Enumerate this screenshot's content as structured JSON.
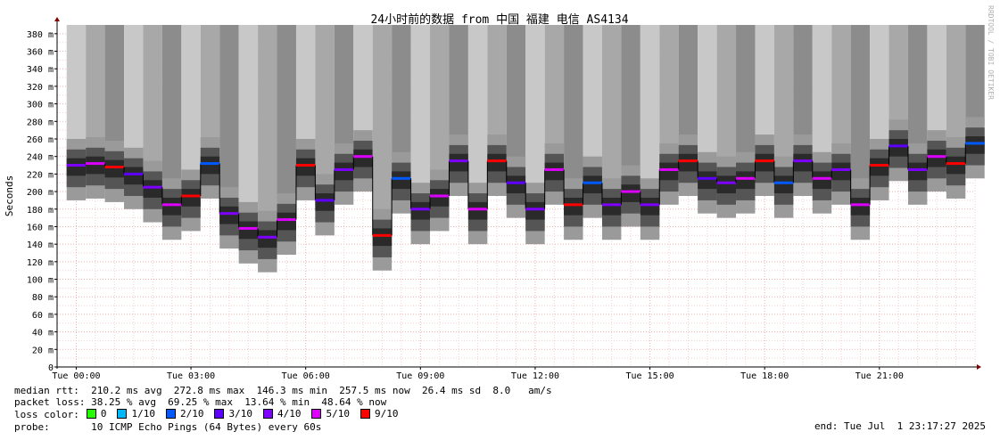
{
  "chart_data": {
    "type": "area",
    "title": "24小时前的数据 from 中国 福建 电信 AS4134",
    "ylabel": "Seconds",
    "watermark": "RRDTOOL / TOBI OETIKER",
    "ylim": [
      0,
      390
    ],
    "y_ticks": [
      {
        "v": 0,
        "label": "0"
      },
      {
        "v": 20,
        "label": "20 m"
      },
      {
        "v": 40,
        "label": "40 m"
      },
      {
        "v": 60,
        "label": "60 m"
      },
      {
        "v": 80,
        "label": "80 m"
      },
      {
        "v": 100,
        "label": "100 m"
      },
      {
        "v": 120,
        "label": "120 m"
      },
      {
        "v": 140,
        "label": "140 m"
      },
      {
        "v": 160,
        "label": "160 m"
      },
      {
        "v": 180,
        "label": "180 m"
      },
      {
        "v": 200,
        "label": "200 m"
      },
      {
        "v": 220,
        "label": "220 m"
      },
      {
        "v": 240,
        "label": "240 m"
      },
      {
        "v": 260,
        "label": "260 m"
      },
      {
        "v": 280,
        "label": "280 m"
      },
      {
        "v": 300,
        "label": "300 m"
      },
      {
        "v": 320,
        "label": "320 m"
      },
      {
        "v": 340,
        "label": "340 m"
      },
      {
        "v": 360,
        "label": "360 m"
      },
      {
        "v": 380,
        "label": "380 m"
      }
    ],
    "x_range_hours": [
      -0.5,
      23.5
    ],
    "x_ticks": [
      {
        "h": 0,
        "label": "Tue 00:00"
      },
      {
        "h": 3,
        "label": "Tue 03:00"
      },
      {
        "h": 6,
        "label": "Tue 06:00"
      },
      {
        "h": 9,
        "label": "Tue 09:00"
      },
      {
        "h": 12,
        "label": "Tue 12:00"
      },
      {
        "h": 15,
        "label": "Tue 15:00"
      },
      {
        "h": 18,
        "label": "Tue 18:00"
      },
      {
        "h": 21,
        "label": "Tue 21:00"
      }
    ],
    "median_series": [
      {
        "h": 0.0,
        "median_ms": 230
      },
      {
        "h": 0.5,
        "median_ms": 232
      },
      {
        "h": 1.0,
        "median_ms": 228
      },
      {
        "h": 1.5,
        "median_ms": 220
      },
      {
        "h": 2.0,
        "median_ms": 205
      },
      {
        "h": 2.5,
        "median_ms": 185
      },
      {
        "h": 3.0,
        "median_ms": 195
      },
      {
        "h": 3.5,
        "median_ms": 232
      },
      {
        "h": 4.0,
        "median_ms": 175
      },
      {
        "h": 4.5,
        "median_ms": 158
      },
      {
        "h": 5.0,
        "median_ms": 148
      },
      {
        "h": 5.5,
        "median_ms": 168
      },
      {
        "h": 6.0,
        "median_ms": 230
      },
      {
        "h": 6.5,
        "median_ms": 190
      },
      {
        "h": 7.0,
        "median_ms": 225
      },
      {
        "h": 7.5,
        "median_ms": 240
      },
      {
        "h": 8.0,
        "median_ms": 150
      },
      {
        "h": 8.5,
        "median_ms": 215
      },
      {
        "h": 9.0,
        "median_ms": 180
      },
      {
        "h": 9.5,
        "median_ms": 195
      },
      {
        "h": 10.0,
        "median_ms": 235
      },
      {
        "h": 10.5,
        "median_ms": 180
      },
      {
        "h": 11.0,
        "median_ms": 235
      },
      {
        "h": 11.5,
        "median_ms": 210
      },
      {
        "h": 12.0,
        "median_ms": 180
      },
      {
        "h": 12.5,
        "median_ms": 225
      },
      {
        "h": 13.0,
        "median_ms": 185
      },
      {
        "h": 13.5,
        "median_ms": 210
      },
      {
        "h": 14.0,
        "median_ms": 185
      },
      {
        "h": 14.5,
        "median_ms": 200
      },
      {
        "h": 15.0,
        "median_ms": 185
      },
      {
        "h": 15.5,
        "median_ms": 225
      },
      {
        "h": 16.0,
        "median_ms": 235
      },
      {
        "h": 16.5,
        "median_ms": 215
      },
      {
        "h": 17.0,
        "median_ms": 210
      },
      {
        "h": 17.5,
        "median_ms": 215
      },
      {
        "h": 18.0,
        "median_ms": 235
      },
      {
        "h": 18.5,
        "median_ms": 210
      },
      {
        "h": 19.0,
        "median_ms": 235
      },
      {
        "h": 19.5,
        "median_ms": 215
      },
      {
        "h": 20.0,
        "median_ms": 225
      },
      {
        "h": 20.5,
        "median_ms": 185
      },
      {
        "h": 21.0,
        "median_ms": 230
      },
      {
        "h": 21.5,
        "median_ms": 252
      },
      {
        "h": 22.0,
        "median_ms": 225
      },
      {
        "h": 22.5,
        "median_ms": 240
      },
      {
        "h": 23.0,
        "median_ms": 232
      },
      {
        "h": 23.5,
        "median_ms": 255
      }
    ],
    "loss_colors": [
      {
        "label": "0",
        "color": "#26ff00"
      },
      {
        "label": "1/10",
        "color": "#00b8ff"
      },
      {
        "label": "2/10",
        "color": "#0059ff"
      },
      {
        "label": "3/10",
        "color": "#5e00ff"
      },
      {
        "label": "4/10",
        "color": "#7e00ff"
      },
      {
        "label": "5/10",
        "color": "#dd00ff"
      },
      {
        "label": "9/10",
        "color": "#ff0000"
      }
    ]
  },
  "stats": {
    "median_rtt": "median rtt:  210.2 ms avg  272.8 ms max  146.3 ms min  257.5 ms now  26.4 ms sd  8.0   am/s",
    "packet_loss": "packet loss: 38.25 % avg  69.25 % max  13.64 % min  48.64 % now",
    "loss_color_label": "loss color:",
    "probe": "probe:       10 ICMP Echo Pings (64 Bytes) every 60s",
    "end": "end: Tue Jul  1 23:17:27 2025"
  }
}
